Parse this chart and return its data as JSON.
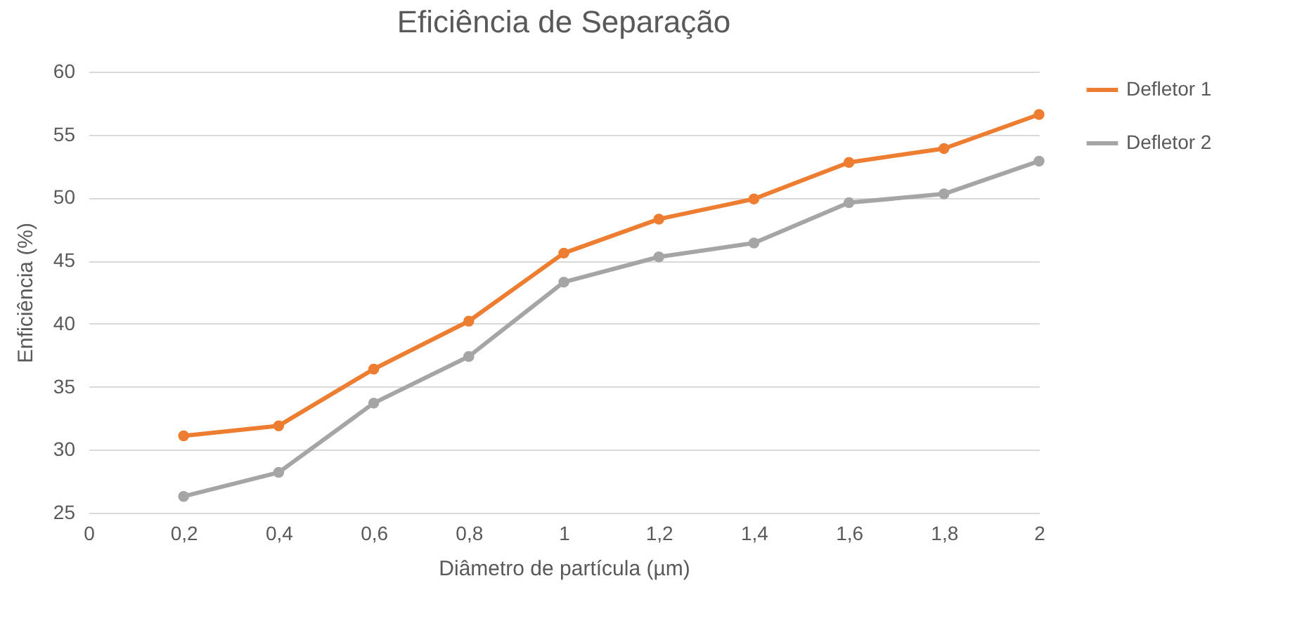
{
  "chart_data": {
    "type": "line",
    "title": "Eficiência de Separação",
    "xlabel": "Diâmetro de partícula (µm)",
    "ylabel": "Enficiência (%)",
    "x": [
      0.2,
      0.4,
      0.6,
      0.8,
      1,
      1.2,
      1.4,
      1.6,
      1.8,
      2
    ],
    "series": [
      {
        "name": "Defletor 1",
        "color": "#ed7d31",
        "values": [
          31.1,
          31.9,
          36.4,
          40.2,
          45.6,
          48.3,
          49.9,
          52.8,
          53.9,
          56.6
        ]
      },
      {
        "name": "Defletor 2",
        "color": "#a5a5a5",
        "values": [
          26.3,
          28.2,
          33.7,
          37.4,
          43.3,
          45.3,
          46.4,
          49.6,
          50.3,
          52.9
        ]
      }
    ],
    "xlim": [
      0,
      2
    ],
    "xticks": [
      0,
      {
        "value": 0.2,
        "label": "0,2"
      },
      {
        "value": 0.4,
        "label": "0,4"
      },
      {
        "value": 0.6,
        "label": "0,6"
      },
      {
        "value": 0.8,
        "label": "0,8"
      },
      1,
      {
        "value": 1.2,
        "label": "1,2"
      },
      {
        "value": 1.4,
        "label": "1,4"
      },
      {
        "value": 1.6,
        "label": "1,6"
      },
      {
        "value": 1.8,
        "label": "1,8"
      },
      2
    ],
    "ylim": [
      25,
      60
    ],
    "yticks": [
      25,
      30,
      35,
      40,
      45,
      50,
      55,
      60
    ],
    "grid": "y",
    "legend": "right",
    "marker": "circle",
    "line_style": "solid"
  }
}
